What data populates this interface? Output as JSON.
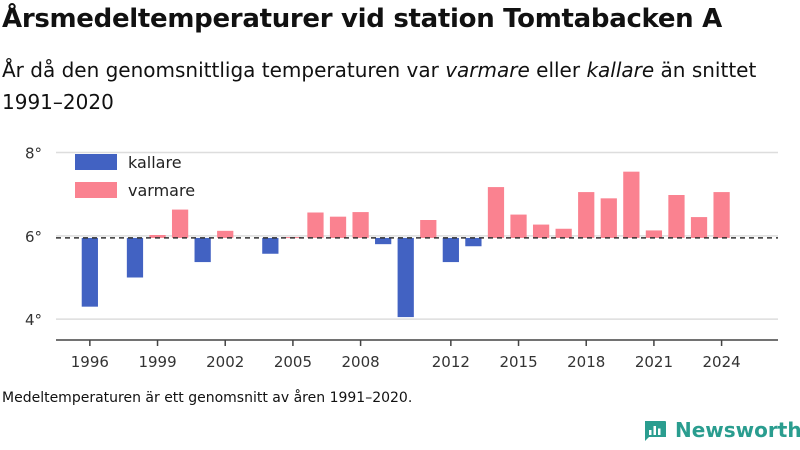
{
  "title": "Årsmedeltemperaturer vid station Tomtabacken A",
  "subtitle": {
    "part1": "År då den genomsnittliga temperaturen var ",
    "warm": "varmare",
    "part2": " eller ",
    "cold": "kallare",
    "part3": " än snittet 1991–2020"
  },
  "footnote": "Medeltemperaturen är ett genomsnitt av åren 1991–2020.",
  "brand": "Newsworthy",
  "colors": {
    "kallare": "#4262c2",
    "varmare": "#fa8290",
    "brand": "#2a9d8f"
  },
  "chart_data": {
    "type": "bar",
    "baseline": 5.95,
    "ylim": [
      3.5,
      8.3
    ],
    "yticks": [
      4,
      6,
      8
    ],
    "ytick_labels": [
      "4°",
      "6°",
      "8°"
    ],
    "xticks": [
      1996,
      1999,
      2002,
      2005,
      2008,
      2012,
      2015,
      2018,
      2021,
      2024
    ],
    "xlim": [
      1994.5,
      2026.5
    ],
    "legend": {
      "position": "top-left",
      "entries": [
        "kallare",
        "varmare"
      ]
    },
    "grid": true,
    "bars": [
      {
        "year": 1996,
        "value": 4.3
      },
      {
        "year": 1998,
        "value": 5.0
      },
      {
        "year": 1999,
        "value": 6.02
      },
      {
        "year": 2000,
        "value": 6.63
      },
      {
        "year": 2001,
        "value": 5.37
      },
      {
        "year": 2002,
        "value": 6.12
      },
      {
        "year": 2004,
        "value": 5.57
      },
      {
        "year": 2005,
        "value": 5.97
      },
      {
        "year": 2006,
        "value": 6.56
      },
      {
        "year": 2007,
        "value": 6.46
      },
      {
        "year": 2008,
        "value": 6.57
      },
      {
        "year": 2009,
        "value": 5.8
      },
      {
        "year": 2010,
        "value": 4.05
      },
      {
        "year": 2011,
        "value": 6.38
      },
      {
        "year": 2012,
        "value": 5.37
      },
      {
        "year": 2013,
        "value": 5.75
      },
      {
        "year": 2014,
        "value": 7.17
      },
      {
        "year": 2015,
        "value": 6.51
      },
      {
        "year": 2016,
        "value": 6.27
      },
      {
        "year": 2017,
        "value": 6.17
      },
      {
        "year": 2018,
        "value": 7.05
      },
      {
        "year": 2019,
        "value": 6.9
      },
      {
        "year": 2020,
        "value": 7.54
      },
      {
        "year": 2021,
        "value": 6.13
      },
      {
        "year": 2022,
        "value": 6.98
      },
      {
        "year": 2023,
        "value": 6.45
      },
      {
        "year": 2024,
        "value": 7.05
      }
    ]
  }
}
